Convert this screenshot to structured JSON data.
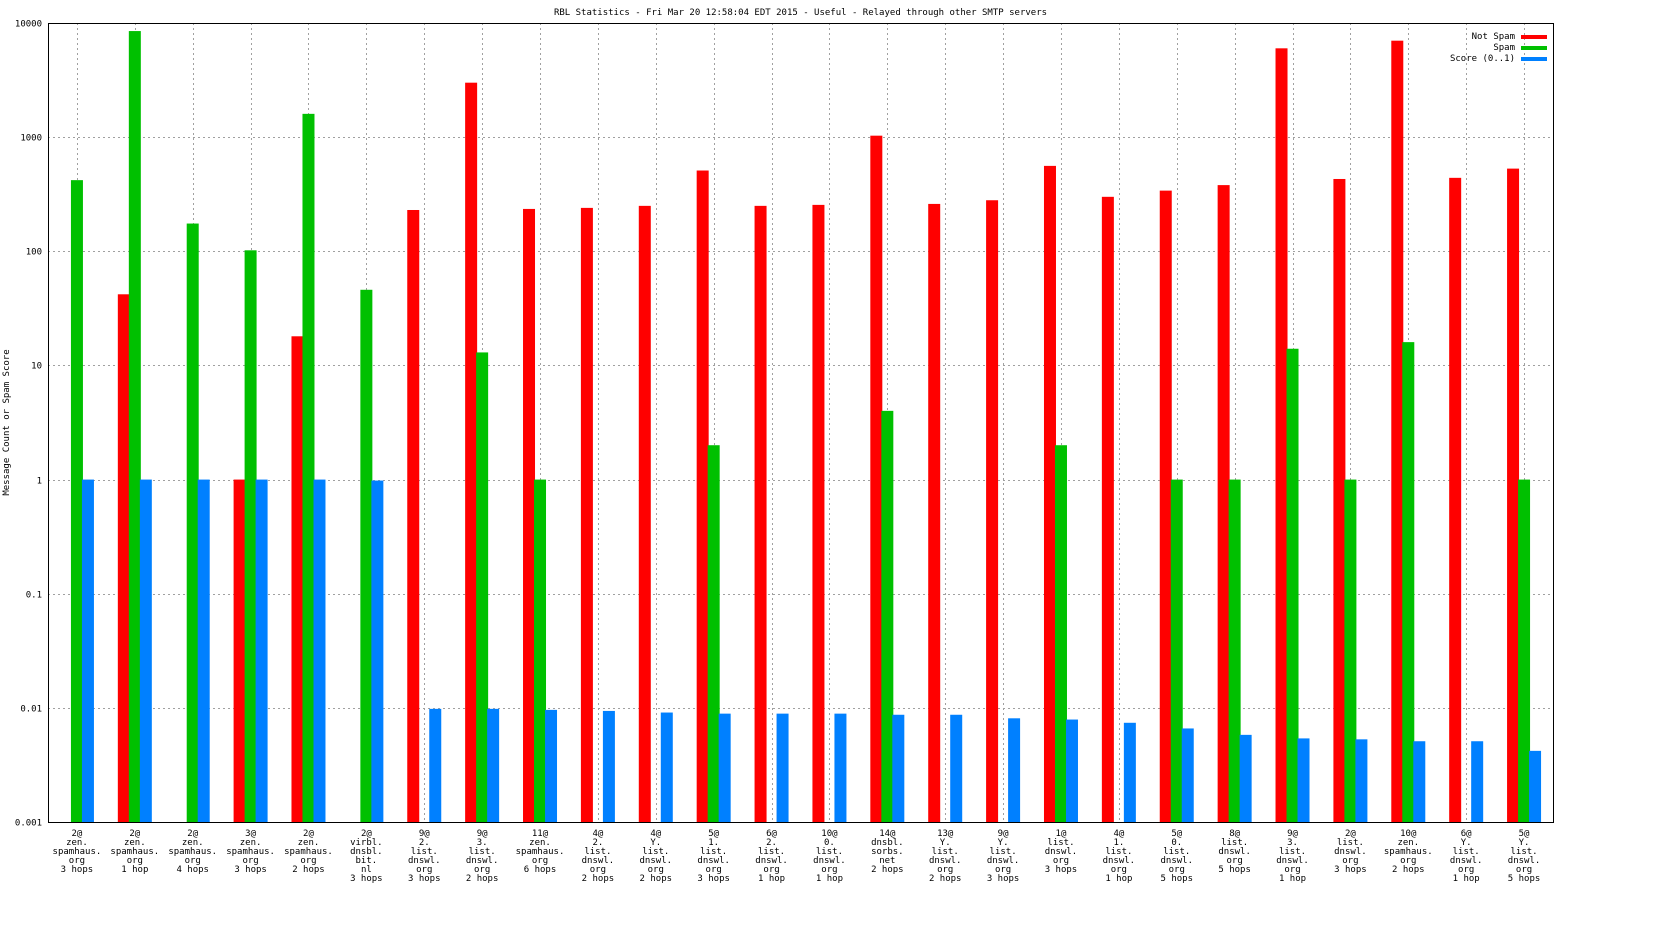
{
  "chart_data": {
    "type": "bar",
    "title": "RBL Statistics - Fri Mar 20 12:58:04 EDT 2015 - Useful - Relayed through other SMTP servers",
    "xlabel": "",
    "ylabel": "Message Count or Spam Score",
    "yscale": "log",
    "ylim": [
      0.001,
      10000
    ],
    "yticks": [
      "0.001",
      "0.01",
      "0.1",
      "1",
      "10",
      "100",
      "1000",
      "10000"
    ],
    "grid": true,
    "legend_position": "top-right",
    "categories": [
      [
        "2@",
        "zen.",
        "spamhaus.",
        "org",
        "3 hops"
      ],
      [
        "2@",
        "zen.",
        "spamhaus.",
        "org",
        "1 hop"
      ],
      [
        "2@",
        "zen.",
        "spamhaus.",
        "org",
        "4 hops"
      ],
      [
        "3@",
        "zen.",
        "spamhaus.",
        "org",
        "3 hops"
      ],
      [
        "2@",
        "zen.",
        "spamhaus.",
        "org",
        "2 hops"
      ],
      [
        "2@",
        "virbl.",
        "dnsbl.",
        "bit.",
        "nl",
        "3 hops"
      ],
      [
        "9@",
        "2.",
        "list.",
        "dnswl.",
        "org",
        "3 hops"
      ],
      [
        "9@",
        "3.",
        "list.",
        "dnswl.",
        "org",
        "2 hops"
      ],
      [
        "11@",
        "zen.",
        "spamhaus.",
        "org",
        "6 hops"
      ],
      [
        "4@",
        "2.",
        "list.",
        "dnswl.",
        "org",
        "2 hops"
      ],
      [
        "4@",
        "Y.",
        "list.",
        "dnswl.",
        "org",
        "2 hops"
      ],
      [
        "5@",
        "1.",
        "list.",
        "dnswl.",
        "org",
        "3 hops"
      ],
      [
        "6@",
        "2.",
        "list.",
        "dnswl.",
        "org",
        "1 hop"
      ],
      [
        "10@",
        "0.",
        "list.",
        "dnswl.",
        "org",
        "1 hop"
      ],
      [
        "14@",
        "dnsbl.",
        "sorbs.",
        "net",
        "2 hops"
      ],
      [
        "13@",
        "Y.",
        "list.",
        "dnswl.",
        "org",
        "2 hops"
      ],
      [
        "9@",
        "Y.",
        "list.",
        "dnswl.",
        "org",
        "3 hops"
      ],
      [
        "1@",
        "list.",
        "dnswl.",
        "org",
        "3 hops"
      ],
      [
        "4@",
        "1.",
        "list.",
        "dnswl.",
        "org",
        "1 hop"
      ],
      [
        "5@",
        "0.",
        "list.",
        "dnswl.",
        "org",
        "5 hops"
      ],
      [
        "8@",
        "list.",
        "dnswl.",
        "org",
        "5 hops"
      ],
      [
        "9@",
        "3.",
        "list.",
        "dnswl.",
        "org",
        "1 hop"
      ],
      [
        "2@",
        "list.",
        "dnswl.",
        "org",
        "3 hops"
      ],
      [
        "10@",
        "zen.",
        "spamhaus.",
        "org",
        "2 hops"
      ],
      [
        "6@",
        "Y.",
        "list.",
        "dnswl.",
        "org",
        "1 hop"
      ],
      [
        "5@",
        "Y.",
        "list.",
        "dnswl.",
        "org",
        "5 hops"
      ]
    ],
    "series": [
      {
        "name": "Not Spam",
        "color": "#ff0000",
        "values": [
          null,
          42,
          null,
          1,
          18,
          null,
          230,
          3000,
          235,
          240,
          250,
          510,
          250,
          255,
          1030,
          260,
          280,
          560,
          300,
          340,
          380,
          6000,
          430,
          7000,
          440,
          530
        ]
      },
      {
        "name": "Spam",
        "color": "#00c000",
        "values": [
          420,
          8500,
          175,
          102,
          1600,
          46,
          null,
          13,
          1,
          null,
          null,
          2,
          null,
          null,
          4,
          null,
          null,
          2,
          null,
          1,
          1,
          14,
          1,
          16,
          null,
          1
        ]
      },
      {
        "name": "Score (0..1)",
        "color": "#0080ff",
        "values": [
          1,
          1,
          1,
          1,
          1,
          0.98,
          0.0098,
          0.0098,
          0.0096,
          0.0094,
          0.0091,
          0.0089,
          0.0089,
          0.0089,
          0.0087,
          0.0087,
          0.0081,
          0.0079,
          0.0074,
          0.0066,
          0.0058,
          0.0054,
          0.0053,
          0.0051,
          0.0051,
          0.0042
        ]
      }
    ]
  }
}
